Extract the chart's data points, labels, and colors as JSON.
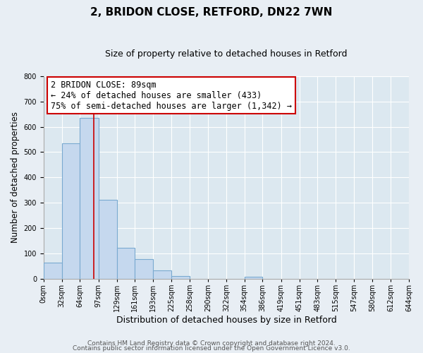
{
  "title": "2, BRIDON CLOSE, RETFORD, DN22 7WN",
  "subtitle": "Size of property relative to detached houses in Retford",
  "xlabel": "Distribution of detached houses by size in Retford",
  "ylabel": "Number of detached properties",
  "bin_labels": [
    "0sqm",
    "32sqm",
    "64sqm",
    "97sqm",
    "129sqm",
    "161sqm",
    "193sqm",
    "225sqm",
    "258sqm",
    "290sqm",
    "322sqm",
    "354sqm",
    "386sqm",
    "419sqm",
    "451sqm",
    "483sqm",
    "515sqm",
    "547sqm",
    "580sqm",
    "612sqm",
    "644sqm"
  ],
  "bin_edges": [
    0,
    32,
    64,
    97,
    129,
    161,
    193,
    225,
    258,
    290,
    322,
    354,
    386,
    419,
    451,
    483,
    515,
    547,
    580,
    612,
    644
  ],
  "bar_heights": [
    65,
    535,
    635,
    312,
    122,
    77,
    33,
    12,
    0,
    0,
    0,
    8,
    0,
    0,
    0,
    0,
    0,
    0,
    0,
    0
  ],
  "bar_color": "#c5d8ee",
  "bar_edge_color": "#7aaad0",
  "vline_x": 89,
  "vline_color": "#cc0000",
  "annotation_line1": "2 BRIDON CLOSE: 89sqm",
  "annotation_line2": "← 24% of detached houses are smaller (433)",
  "annotation_line3": "75% of semi-detached houses are larger (1,342) →",
  "ylim": [
    0,
    800
  ],
  "yticks": [
    0,
    100,
    200,
    300,
    400,
    500,
    600,
    700,
    800
  ],
  "background_color": "#e8eef4",
  "plot_bg_color": "#dce8f0",
  "footer_line1": "Contains HM Land Registry data © Crown copyright and database right 2024.",
  "footer_line2": "Contains public sector information licensed under the Open Government Licence v3.0.",
  "title_fontsize": 11,
  "subtitle_fontsize": 9,
  "xlabel_fontsize": 9,
  "ylabel_fontsize": 8.5,
  "tick_fontsize": 7,
  "annotation_fontsize": 8.5,
  "footer_fontsize": 6.5
}
